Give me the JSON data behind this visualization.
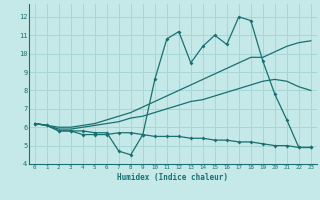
{
  "xlabel": "Humidex (Indice chaleur)",
  "xlim": [
    -0.5,
    23.5
  ],
  "ylim": [
    4,
    12.7
  ],
  "yticks": [
    4,
    5,
    6,
    7,
    8,
    9,
    10,
    11,
    12
  ],
  "xticks": [
    0,
    1,
    2,
    3,
    4,
    5,
    6,
    7,
    8,
    9,
    10,
    11,
    12,
    13,
    14,
    15,
    16,
    17,
    18,
    19,
    20,
    21,
    22,
    23
  ],
  "background_color": "#c5e8e8",
  "grid_color": "#a8d5d5",
  "line_color": "#1a7070",
  "series": {
    "max": {
      "x": [
        0,
        1,
        2,
        3,
        4,
        5,
        6,
        7,
        8,
        9,
        10,
        11,
        12,
        13,
        14,
        15,
        16,
        17,
        18,
        19,
        20,
        21,
        22,
        23
      ],
      "y": [
        6.2,
        6.1,
        5.8,
        5.8,
        5.8,
        5.7,
        5.7,
        4.7,
        4.5,
        5.6,
        8.6,
        10.8,
        11.2,
        9.5,
        10.4,
        11.0,
        10.5,
        12.0,
        11.8,
        9.6,
        7.8,
        6.4,
        4.9,
        4.9
      ]
    },
    "min": {
      "x": [
        0,
        1,
        2,
        3,
        4,
        5,
        6,
        7,
        8,
        9,
        10,
        11,
        12,
        13,
        14,
        15,
        16,
        17,
        18,
        19,
        20,
        21,
        22,
        23
      ],
      "y": [
        6.2,
        6.1,
        5.8,
        5.8,
        5.6,
        5.6,
        5.6,
        5.7,
        5.7,
        5.6,
        5.5,
        5.5,
        5.5,
        5.4,
        5.4,
        5.3,
        5.3,
        5.2,
        5.2,
        5.1,
        5.0,
        5.0,
        4.9,
        4.9
      ]
    },
    "avg_high": {
      "x": [
        0,
        1,
        2,
        3,
        4,
        5,
        6,
        7,
        8,
        9,
        10,
        11,
        12,
        13,
        14,
        15,
        16,
        17,
        18,
        19,
        20,
        21,
        22,
        23
      ],
      "y": [
        6.2,
        6.1,
        6.0,
        6.0,
        6.1,
        6.2,
        6.4,
        6.6,
        6.8,
        7.1,
        7.4,
        7.7,
        8.0,
        8.3,
        8.6,
        8.9,
        9.2,
        9.5,
        9.8,
        9.8,
        10.1,
        10.4,
        10.6,
        10.7
      ]
    },
    "avg_low": {
      "x": [
        0,
        1,
        2,
        3,
        4,
        5,
        6,
        7,
        8,
        9,
        10,
        11,
        12,
        13,
        14,
        15,
        16,
        17,
        18,
        19,
        20,
        21,
        22,
        23
      ],
      "y": [
        6.2,
        6.1,
        5.9,
        5.9,
        6.0,
        6.1,
        6.2,
        6.3,
        6.5,
        6.6,
        6.8,
        7.0,
        7.2,
        7.4,
        7.5,
        7.7,
        7.9,
        8.1,
        8.3,
        8.5,
        8.6,
        8.5,
        8.2,
        8.0
      ]
    }
  }
}
